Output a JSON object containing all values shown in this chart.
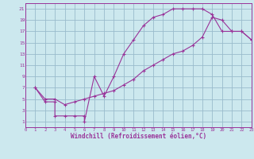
{
  "xlabel": "Windchill (Refroidissement éolien,°C)",
  "bg_color": "#cce8ee",
  "grid_color": "#99bbcc",
  "line_color": "#993399",
  "xmin": 0,
  "xmax": 23,
  "ymin": 0,
  "ymax": 22,
  "xticks": [
    0,
    1,
    2,
    3,
    4,
    5,
    6,
    7,
    8,
    9,
    10,
    11,
    12,
    13,
    14,
    15,
    16,
    17,
    18,
    19,
    20,
    21,
    22,
    23
  ],
  "yticks": [
    1,
    3,
    5,
    7,
    9,
    11,
    13,
    15,
    17,
    19,
    21
  ],
  "line1_x": [
    1,
    2,
    3,
    3,
    4,
    5,
    6,
    6,
    7,
    8,
    9,
    10,
    11,
    12,
    13,
    14,
    15,
    16,
    17,
    18,
    19,
    20,
    21,
    22,
    23
  ],
  "line1_y": [
    7,
    4.5,
    4.5,
    2,
    2,
    2,
    2,
    1,
    9,
    5.5,
    9,
    13,
    15.5,
    18,
    19.5,
    20,
    21,
    21,
    21,
    21,
    20,
    17,
    17,
    17,
    15.5
  ],
  "line2_x": [
    1,
    2,
    3,
    4,
    5,
    6,
    7,
    8,
    9,
    10,
    11,
    12,
    13,
    14,
    15,
    16,
    17,
    18,
    19,
    20,
    21,
    22,
    23
  ],
  "line2_y": [
    7,
    5,
    5,
    4,
    4.5,
    5,
    5.5,
    6,
    6.5,
    7.5,
    8.5,
    10,
    11,
    12,
    13,
    13.5,
    14.5,
    16,
    19.5,
    19,
    17,
    17,
    15.5
  ]
}
